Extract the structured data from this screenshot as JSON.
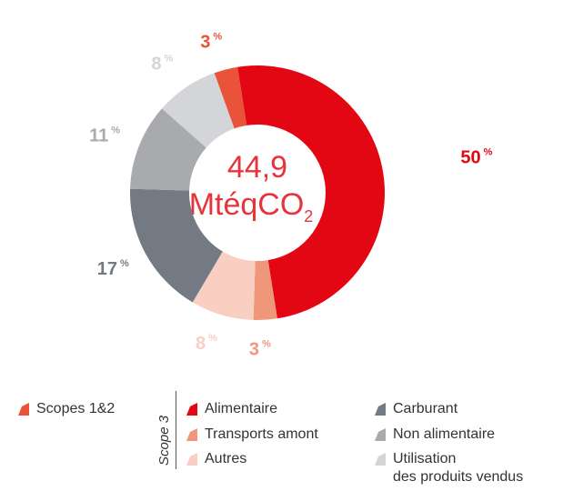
{
  "chart_data": {
    "type": "donut",
    "center_value": "44,9",
    "center_unit": "MtéqCO",
    "center_unit_sub": "2",
    "unit": "%",
    "categories": [
      "Scopes 1&2",
      "Alimentaire",
      "Transports amont",
      "Autres",
      "Carburant",
      "Non alimentaire",
      "Utilisation\ndes produits vendus"
    ],
    "values": [
      3,
      50,
      3,
      8,
      17,
      11,
      8
    ],
    "colors": [
      "#e8533a",
      "#e30613",
      "#f0967a",
      "#f9cfc1",
      "#737a83",
      "#a8aaae",
      "#d4d5d9"
    ],
    "legend_group_label": "Scope 3"
  }
}
